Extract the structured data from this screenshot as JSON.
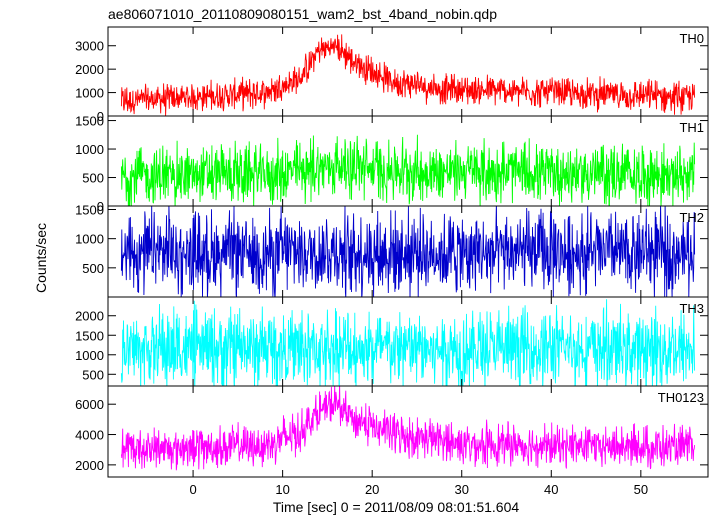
{
  "title": "ae806071010_20110809080151_wam2_bst_4band_nobin.qdp",
  "ylabel": "Counts/sec",
  "xlabel": "Time [sec] 0 = 2011/08/09 08:01:51.604",
  "chart_data": {
    "type": "line",
    "title": "ae806071010_20110809080151_wam2_bst_4band_nobin.qdp",
    "xlabel": "Time [sec] 0 = 2011/08/09 08:01:51.604",
    "ylabel": "Counts/sec",
    "xlim": [
      -9.5,
      57.5
    ],
    "x_ticks": [
      0,
      10,
      20,
      30,
      40,
      50
    ],
    "x_range": [
      -8,
      56
    ],
    "grid": false,
    "panels": [
      {
        "name": "TH0",
        "color": "#ff0000",
        "ylim": [
          0,
          3800
        ],
        "y_ticks": [
          0,
          1000,
          2000,
          3000
        ],
        "keypoints": [
          [
            -8,
            650
          ],
          [
            0,
            800
          ],
          [
            8,
            1000
          ],
          [
            12,
            1600
          ],
          [
            14,
            2800
          ],
          [
            16,
            3000
          ],
          [
            18,
            2300
          ],
          [
            22,
            1500
          ],
          [
            28,
            1150
          ],
          [
            40,
            1000
          ],
          [
            56,
            800
          ]
        ],
        "noise": 800
      },
      {
        "name": "TH1",
        "color": "#00ff00",
        "ylim": [
          0,
          1580
        ],
        "y_ticks": [
          0,
          500,
          1000,
          1500
        ],
        "keypoints": [
          [
            -8,
            520
          ],
          [
            10,
            570
          ],
          [
            16,
            720
          ],
          [
            22,
            620
          ],
          [
            56,
            540
          ]
        ],
        "noise": 680
      },
      {
        "name": "TH2",
        "color": "#0000cc",
        "ylim": [
          0,
          1560
        ],
        "y_ticks": [
          500,
          1000,
          1500
        ],
        "keypoints": [
          [
            -8,
            760
          ],
          [
            56,
            760
          ]
        ],
        "noise": 900
      },
      {
        "name": "TH3",
        "color": "#00ffff",
        "ylim": [
          200,
          2480
        ],
        "y_ticks": [
          500,
          1000,
          1500,
          2000
        ],
        "keypoints": [
          [
            -8,
            1150
          ],
          [
            56,
            1150
          ]
        ],
        "noise": 1300
      },
      {
        "name": "TH0123",
        "color": "#ff00ff",
        "ylim": [
          1200,
          7200
        ],
        "y_ticks": [
          2000,
          4000,
          6000
        ],
        "keypoints": [
          [
            -8,
            3000
          ],
          [
            8,
            3300
          ],
          [
            12,
            4200
          ],
          [
            14,
            5500
          ],
          [
            16,
            6000
          ],
          [
            18,
            5000
          ],
          [
            22,
            4100
          ],
          [
            30,
            3400
          ],
          [
            56,
            3100
          ]
        ],
        "noise": 1700
      }
    ]
  }
}
